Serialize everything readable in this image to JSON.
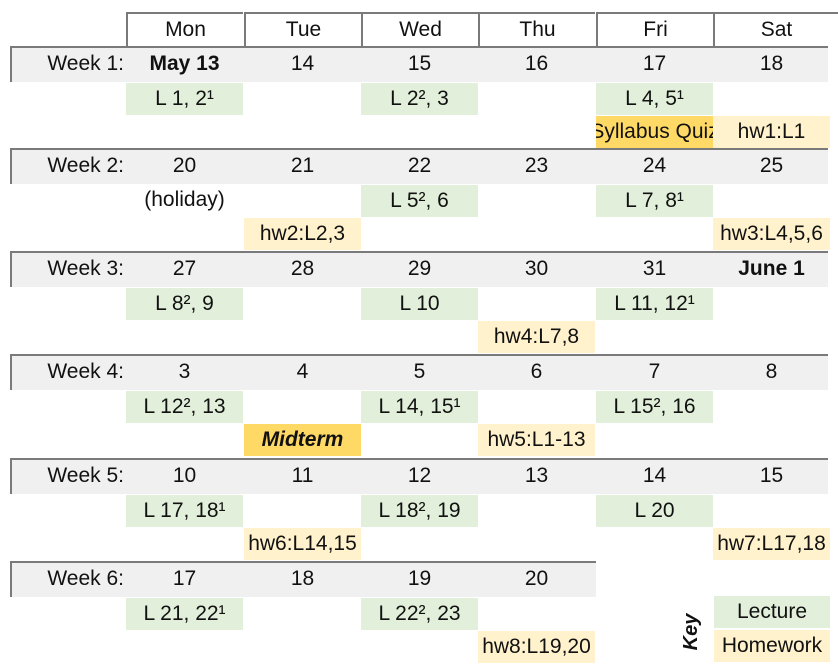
{
  "days": [
    "Mon",
    "Tue",
    "Wed",
    "Thu",
    "Fri",
    "Sat"
  ],
  "weeks": [
    {
      "label": "Week 1:",
      "dates": [
        "May 13",
        "14",
        "15",
        "16",
        "17",
        "18"
      ],
      "lectures": [
        {
          "day": 0,
          "text": "L 1, 2¹"
        },
        {
          "day": 2,
          "text": "L 2², 3"
        },
        {
          "day": 4,
          "text": "L 4, 5¹"
        }
      ],
      "extras": [
        {
          "day": 4,
          "text": "Syllabus Quiz",
          "kind": "quiz"
        },
        {
          "day": 5,
          "text": "hw1:L1",
          "kind": "hw"
        }
      ]
    },
    {
      "label": "Week 2:",
      "dates": [
        "20",
        "21",
        "22",
        "23",
        "24",
        "25"
      ],
      "notes": [
        {
          "day": 0,
          "text": "(holiday)"
        }
      ],
      "lectures": [
        {
          "day": 2,
          "text": "L 5², 6"
        },
        {
          "day": 4,
          "text": "L 7, 8¹"
        }
      ],
      "extras": [
        {
          "day": 1,
          "text": "hw2:L2,3",
          "kind": "hw"
        },
        {
          "day": 5,
          "text": "hw3:L4,5,6",
          "kind": "hw"
        }
      ]
    },
    {
      "label": "Week 3:",
      "dates": [
        "27",
        "28",
        "29",
        "30",
        "31",
        "June 1"
      ],
      "lectures": [
        {
          "day": 0,
          "text": "L 8², 9"
        },
        {
          "day": 2,
          "text": "L 10"
        },
        {
          "day": 4,
          "text": "L 11, 12¹"
        }
      ],
      "extras": [
        {
          "day": 3,
          "text": "hw4:L7,8",
          "kind": "hw"
        }
      ]
    },
    {
      "label": "Week 4:",
      "dates": [
        "3",
        "4",
        "5",
        "6",
        "7",
        "8"
      ],
      "lectures": [
        {
          "day": 0,
          "text": "L 12², 13"
        },
        {
          "day": 2,
          "text": "L 14, 15¹"
        },
        {
          "day": 4,
          "text": "L 15², 16"
        }
      ],
      "extras": [
        {
          "day": 1,
          "text": "Midterm",
          "kind": "midterm"
        },
        {
          "day": 3,
          "text": "hw5:L1-13",
          "kind": "hw"
        }
      ]
    },
    {
      "label": "Week 5:",
      "dates": [
        "10",
        "11",
        "12",
        "13",
        "14",
        "15"
      ],
      "lectures": [
        {
          "day": 0,
          "text": "L 17, 18¹"
        },
        {
          "day": 2,
          "text": "L 18², 19"
        },
        {
          "day": 4,
          "text": "L 20"
        }
      ],
      "extras": [
        {
          "day": 1,
          "text": "hw6:L14,15",
          "kind": "hw"
        },
        {
          "day": 5,
          "text": "hw7:L17,18",
          "kind": "hw"
        }
      ]
    },
    {
      "label": "Week 6:",
      "dates": [
        "17",
        "18",
        "19",
        "20"
      ],
      "lectures": [
        {
          "day": 0,
          "text": "L 21, 22¹"
        },
        {
          "day": 2,
          "text": "L 22², 23"
        }
      ],
      "extras": [
        {
          "day": 3,
          "text": "hw8:L19,20",
          "kind": "hw"
        }
      ]
    }
  ],
  "key": {
    "title": "Key",
    "lecture": "Lecture",
    "homework": "Homework"
  },
  "colors": {
    "lecture": "#e2efda",
    "homework": "#fff2cc",
    "highlight": "#ffd966",
    "week_band": "#f0f0f0"
  }
}
